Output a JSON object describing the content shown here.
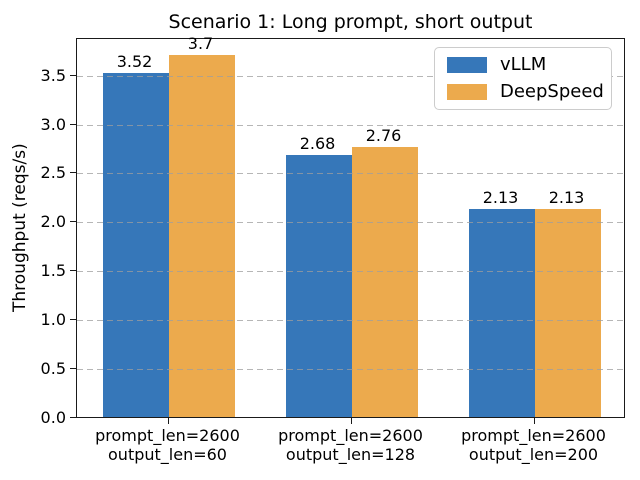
{
  "chart_data": {
    "type": "bar",
    "title": "Scenario 1: Long prompt, short output",
    "ylabel": "Throughput (reqs/s)",
    "xlabel": "",
    "categories": [
      [
        "prompt_len=2600",
        "output_len=60"
      ],
      [
        "prompt_len=2600",
        "output_len=128"
      ],
      [
        "prompt_len=2600",
        "output_len=200"
      ]
    ],
    "series": [
      {
        "name": "vLLM",
        "color": "#3677B9",
        "values": [
          3.52,
          2.68,
          2.13
        ]
      },
      {
        "name": "DeepSpeed",
        "color": "#ECAA4D",
        "values": [
          3.7,
          2.76,
          2.13
        ]
      }
    ],
    "bar_value_labels": [
      "3.52",
      "3.7",
      "2.68",
      "2.76",
      "2.13",
      "2.13"
    ],
    "ylim": [
      0,
      3.885
    ],
    "ytick_labels": [
      "0.0",
      "0.5",
      "1.0",
      "1.5",
      "2.0",
      "2.5",
      "3.0",
      "3.5"
    ],
    "grid": {
      "axis": "y",
      "style": "dashed",
      "color": "#9e9e9e"
    },
    "legend": {
      "position": "upper right",
      "entries": [
        "vLLM",
        "DeepSpeed"
      ]
    }
  }
}
